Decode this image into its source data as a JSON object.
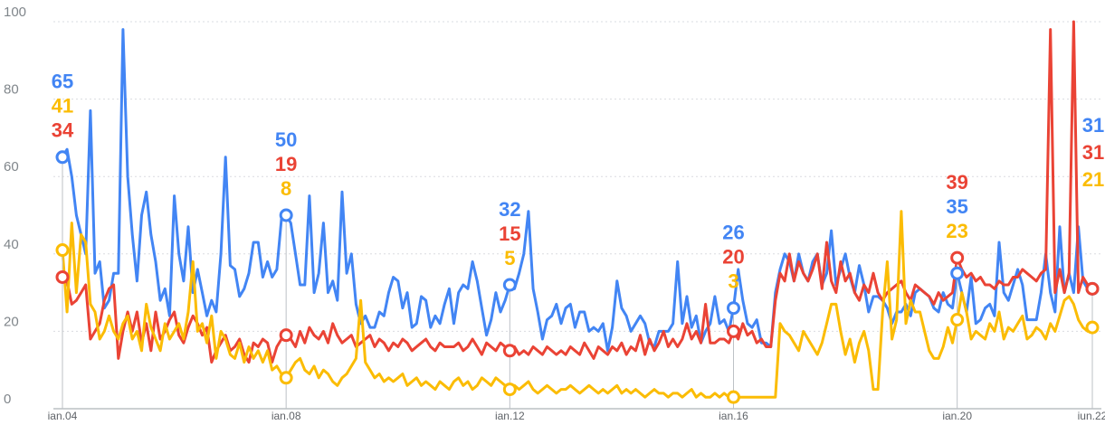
{
  "chart_data": {
    "type": "line",
    "categories": [
      "ian.04",
      null,
      null,
      null,
      null,
      null,
      null,
      null,
      null,
      null,
      null,
      null,
      null,
      null,
      null,
      null,
      null,
      null,
      null,
      null,
      null,
      null,
      null,
      null,
      null,
      null,
      null,
      null,
      null,
      null,
      null,
      null,
      null,
      null,
      null,
      null,
      null,
      null,
      null,
      null,
      null,
      null,
      null,
      null,
      null,
      null,
      null,
      null,
      "ian.08",
      null,
      null,
      null,
      null,
      null,
      null,
      null,
      null,
      null,
      null,
      null,
      null,
      null,
      null,
      null,
      null,
      null,
      null,
      null,
      null,
      null,
      null,
      null,
      null,
      null,
      null,
      null,
      null,
      null,
      null,
      null,
      null,
      null,
      null,
      null,
      null,
      null,
      null,
      null,
      null,
      null,
      null,
      null,
      null,
      null,
      null,
      null,
      "ian.12",
      null,
      null,
      null,
      null,
      null,
      null,
      null,
      null,
      null,
      null,
      null,
      null,
      null,
      null,
      null,
      null,
      null,
      null,
      null,
      null,
      null,
      null,
      null,
      null,
      null,
      null,
      null,
      null,
      null,
      null,
      null,
      null,
      null,
      null,
      null,
      null,
      null,
      null,
      null,
      null,
      null,
      null,
      null,
      null,
      null,
      null,
      null,
      "ian.16",
      null,
      null,
      null,
      null,
      null,
      null,
      null,
      null,
      null,
      null,
      null,
      null,
      null,
      null,
      null,
      null,
      null,
      null,
      null,
      null,
      null,
      null,
      null,
      null,
      null,
      null,
      null,
      null,
      null,
      null,
      null,
      null,
      null,
      null,
      null,
      null,
      null,
      null,
      null,
      null,
      null,
      null,
      null,
      null,
      null,
      null,
      null,
      "ian.20",
      null,
      null,
      null,
      null,
      null,
      null,
      null,
      null,
      null,
      null,
      null,
      null,
      null,
      null,
      null,
      null,
      null,
      null,
      null,
      null,
      null,
      null,
      null,
      null,
      null,
      null,
      null,
      null,
      "iun.22"
    ],
    "series": [
      {
        "color": "#4285f4",
        "values": [
          65,
          67,
          60,
          50,
          45,
          40,
          77,
          35,
          38,
          26,
          28,
          35,
          35,
          98,
          60,
          45,
          33,
          50,
          56,
          45,
          38,
          28,
          31,
          24,
          55,
          40,
          33,
          47,
          30,
          36,
          30,
          24,
          28,
          25,
          40,
          65,
          37,
          36,
          29,
          31,
          35,
          43,
          43,
          34,
          38,
          34,
          36,
          49,
          50,
          48,
          40,
          32,
          32,
          55,
          30,
          35,
          48,
          30,
          33,
          28,
          56,
          35,
          40,
          27,
          22,
          24,
          21,
          21,
          25,
          24,
          30,
          34,
          33,
          26,
          30,
          21,
          22,
          29,
          28,
          21,
          24,
          22,
          27,
          31,
          22,
          30,
          32,
          31,
          38,
          33,
          26,
          19,
          23,
          30,
          25,
          28,
          32,
          31,
          35,
          40,
          51,
          31,
          25,
          18,
          23,
          24,
          27,
          22,
          26,
          27,
          21,
          25,
          25,
          20,
          21,
          20,
          22,
          15,
          21,
          33,
          26,
          24,
          20,
          22,
          24,
          22,
          17,
          16,
          20,
          20,
          20,
          22,
          38,
          22,
          29,
          21,
          24,
          17,
          20,
          22,
          29,
          22,
          23,
          20,
          26,
          36,
          28,
          22,
          21,
          23,
          17,
          17,
          16,
          30,
          36,
          40,
          38,
          33,
          40,
          35,
          33,
          38,
          40,
          32,
          35,
          46,
          32,
          36,
          40,
          34,
          30,
          37,
          32,
          25,
          29,
          29,
          28,
          26,
          22,
          25,
          25,
          27,
          24,
          30,
          31,
          30,
          29,
          26,
          25,
          30,
          27,
          26,
          35,
          30,
          25,
          34,
          22,
          23,
          26,
          27,
          24,
          43,
          30,
          28,
          32,
          36,
          32,
          23,
          23,
          23,
          30,
          40,
          30,
          25,
          47,
          30,
          35,
          30,
          47,
          33,
          31,
          31
        ]
      },
      {
        "color": "#ea4335",
        "values": [
          34,
          33,
          27,
          28,
          30,
          32,
          18,
          20,
          22,
          28,
          31,
          32,
          13,
          20,
          25,
          20,
          25,
          17,
          22,
          15,
          25,
          18,
          20,
          23,
          25,
          19,
          17,
          21,
          24,
          22,
          19,
          21,
          12,
          15,
          17,
          19,
          15,
          16,
          18,
          14,
          12,
          17,
          16,
          18,
          17,
          12,
          16,
          18,
          19,
          18,
          16,
          20,
          17,
          21,
          19,
          18,
          20,
          17,
          22,
          19,
          17,
          18,
          19,
          16,
          17,
          18,
          19,
          16,
          18,
          17,
          15,
          17,
          16,
          18,
          17,
          15,
          16,
          17,
          18,
          16,
          15,
          17,
          16,
          16,
          16,
          17,
          15,
          16,
          18,
          16,
          14,
          17,
          16,
          15,
          17,
          16,
          15,
          16,
          14,
          15,
          14,
          16,
          15,
          14,
          16,
          15,
          14,
          15,
          14,
          16,
          15,
          14,
          17,
          15,
          13,
          16,
          15,
          14,
          16,
          15,
          17,
          14,
          16,
          15,
          19,
          14,
          18,
          15,
          17,
          20,
          16,
          18,
          16,
          18,
          22,
          18,
          20,
          17,
          27,
          17,
          17,
          18,
          18,
          17,
          20,
          18,
          22,
          19,
          20,
          17,
          18,
          16,
          16,
          28,
          35,
          33,
          40,
          33,
          38,
          35,
          33,
          36,
          40,
          31,
          43,
          33,
          30,
          38,
          33,
          35,
          30,
          28,
          32,
          30,
          35,
          30,
          28,
          30,
          31,
          32,
          33,
          30,
          28,
          32,
          31,
          30,
          29,
          27,
          30,
          28,
          29,
          30,
          39,
          36,
          34,
          35,
          33,
          34,
          32,
          32,
          31,
          33,
          32,
          32,
          34,
          34,
          36,
          35,
          34,
          33,
          35,
          36,
          98,
          30,
          36,
          30,
          35,
          100,
          30,
          34,
          32,
          31
        ]
      },
      {
        "color": "#fbbc04",
        "values": [
          41,
          25,
          48,
          30,
          45,
          43,
          27,
          25,
          18,
          20,
          24,
          20,
          18,
          22,
          24,
          18,
          20,
          15,
          27,
          21,
          18,
          15,
          22,
          18,
          20,
          22,
          18,
          25,
          38,
          20,
          22,
          17,
          24,
          13,
          20,
          18,
          14,
          13,
          17,
          12,
          16,
          13,
          15,
          12,
          15,
          10,
          11,
          9,
          8,
          10,
          12,
          13,
          10,
          9,
          11,
          8,
          10,
          9,
          7,
          6,
          8,
          9,
          11,
          13,
          28,
          12,
          10,
          8,
          9,
          7,
          8,
          7,
          8,
          9,
          6,
          7,
          8,
          6,
          7,
          6,
          5,
          7,
          6,
          5,
          7,
          8,
          6,
          7,
          5,
          6,
          8,
          7,
          6,
          8,
          7,
          6,
          5,
          6,
          5,
          6,
          7,
          5,
          4,
          5,
          6,
          5,
          4,
          5,
          5,
          6,
          5,
          4,
          5,
          6,
          5,
          4,
          5,
          4,
          5,
          6,
          4,
          5,
          4,
          5,
          4,
          3,
          4,
          5,
          4,
          4,
          3,
          4,
          4,
          3,
          4,
          5,
          3,
          4,
          3,
          3,
          4,
          3,
          4,
          3,
          3,
          3,
          3,
          3,
          3,
          3,
          3,
          3,
          3,
          3,
          22,
          20,
          19,
          17,
          15,
          20,
          18,
          16,
          14,
          17,
          22,
          27,
          27,
          20,
          14,
          18,
          12,
          17,
          20,
          15,
          5,
          5,
          25,
          38,
          18,
          23,
          51,
          22,
          28,
          25,
          25,
          20,
          15,
          13,
          13,
          16,
          21,
          17,
          23,
          30,
          25,
          18,
          20,
          19,
          18,
          22,
          20,
          25,
          18,
          21,
          20,
          22,
          24,
          18,
          19,
          21,
          20,
          18,
          22,
          20,
          24,
          28,
          29,
          27,
          23,
          21,
          20,
          21
        ]
      }
    ],
    "ylim": [
      0,
      100
    ],
    "yticks": [
      0,
      20,
      40,
      60,
      80,
      100
    ],
    "grid": true
  }
}
